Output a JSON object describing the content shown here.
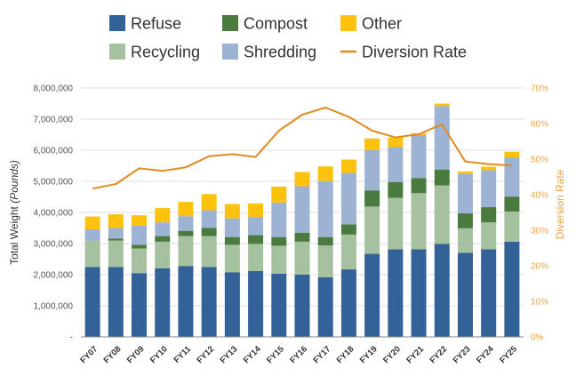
{
  "chart_data": {
    "type": "bar",
    "stacked": true,
    "categories": [
      "FY07",
      "FY08",
      "FY09",
      "FY10",
      "FY11",
      "FY12",
      "FY13",
      "FY14",
      "FY15",
      "FY16",
      "FY17",
      "FY18",
      "FY19",
      "FY20",
      "FY21",
      "FY22",
      "FY23",
      "FY24",
      "FY25"
    ],
    "series": [
      {
        "name": "Refuse",
        "color": "#336299",
        "values": [
          2250000,
          2250000,
          2050000,
          2200000,
          2280000,
          2250000,
          2080000,
          2120000,
          2030000,
          2000000,
          1920000,
          2170000,
          2670000,
          2820000,
          2820000,
          2990000,
          2700000,
          2820000,
          3060000
        ]
      },
      {
        "name": "Recycling",
        "color": "#a6c19f",
        "values": [
          850000,
          850000,
          790000,
          860000,
          960000,
          990000,
          880000,
          870000,
          900000,
          1060000,
          1020000,
          1120000,
          1520000,
          1650000,
          1800000,
          1880000,
          790000,
          860000,
          970000
        ]
      },
      {
        "name": "Compost",
        "color": "#4b7a3e",
        "values": [
          0,
          60000,
          120000,
          180000,
          170000,
          260000,
          250000,
          280000,
          280000,
          290000,
          270000,
          330000,
          520000,
          510000,
          480000,
          510000,
          480000,
          490000,
          480000
        ]
      },
      {
        "name": "Shredding",
        "color": "#9db3d3",
        "values": [
          360000,
          340000,
          620000,
          440000,
          470000,
          570000,
          600000,
          590000,
          1110000,
          1490000,
          1800000,
          1650000,
          1290000,
          1120000,
          1390000,
          2040000,
          1280000,
          1190000,
          1260000
        ]
      },
      {
        "name": "Other",
        "color": "#fdc20e",
        "values": [
          410000,
          440000,
          330000,
          460000,
          460000,
          520000,
          460000,
          430000,
          510000,
          460000,
          470000,
          430000,
          380000,
          310000,
          60000,
          80000,
          70000,
          110000,
          180000
        ]
      }
    ],
    "line_series": {
      "name": "Diversion Rate",
      "color": "#e08b1f",
      "axis": "right",
      "values": [
        41.7,
        43.0,
        47.4,
        46.7,
        47.7,
        50.8,
        51.4,
        50.6,
        58.0,
        62.5,
        64.5,
        61.9,
        58.0,
        56.1,
        57.0,
        59.8,
        49.3,
        48.6,
        48.2
      ]
    },
    "ylabel": "Total Weight",
    "ylabel_unit": "(Pounds)",
    "y2label": "Diversion Rate",
    "ylim": [
      0,
      8000000
    ],
    "y2lim": [
      0,
      70
    ],
    "yticks": [
      "-",
      "1,000,000",
      "2,000,000",
      "3,000,000",
      "4,000,000",
      "5,000,000",
      "6,000,000",
      "7,000,000",
      "8,000,000"
    ],
    "y2ticks": [
      "0%",
      "10%",
      "20%",
      "30%",
      "40%",
      "50%",
      "60%",
      "70%"
    ],
    "grid": true,
    "legend_placement": "top"
  }
}
